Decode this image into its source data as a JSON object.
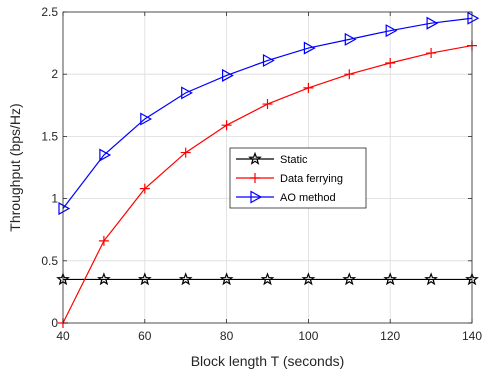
{
  "chart_data": {
    "type": "line",
    "title": "",
    "xlabel": "Block length T (seconds)",
    "ylabel": "Throughput (bps/Hz)",
    "xlim": [
      40,
      140
    ],
    "ylim": [
      0,
      2.5
    ],
    "xticks": [
      40,
      60,
      80,
      100,
      120,
      140
    ],
    "yticks": [
      0,
      0.5,
      1,
      1.5,
      2,
      2.5
    ],
    "xtick_labels": [
      "40",
      "60",
      "80",
      "100",
      "120",
      "140"
    ],
    "ytick_labels": [
      "0",
      "0.5",
      "1",
      "1.5",
      "2",
      "2.5"
    ],
    "grid": true,
    "legend_position": "center-right",
    "x": [
      40,
      50,
      60,
      70,
      80,
      90,
      100,
      110,
      120,
      130,
      140
    ],
    "series": [
      {
        "name": "Static",
        "color": "#000000",
        "marker": "star",
        "values": [
          0.35,
          0.35,
          0.35,
          0.35,
          0.35,
          0.35,
          0.35,
          0.35,
          0.35,
          0.35,
          0.35
        ]
      },
      {
        "name": "Data ferrying",
        "color": "#ff0000",
        "marker": "plus",
        "values": [
          0.0,
          0.66,
          1.08,
          1.37,
          1.59,
          1.76,
          1.89,
          2.0,
          2.09,
          2.17,
          2.23
        ]
      },
      {
        "name": "AO method",
        "color": "#0000ff",
        "marker": "triangle-right",
        "values": [
          0.92,
          1.35,
          1.64,
          1.85,
          1.99,
          2.11,
          2.21,
          2.28,
          2.35,
          2.41,
          2.45
        ]
      }
    ]
  }
}
